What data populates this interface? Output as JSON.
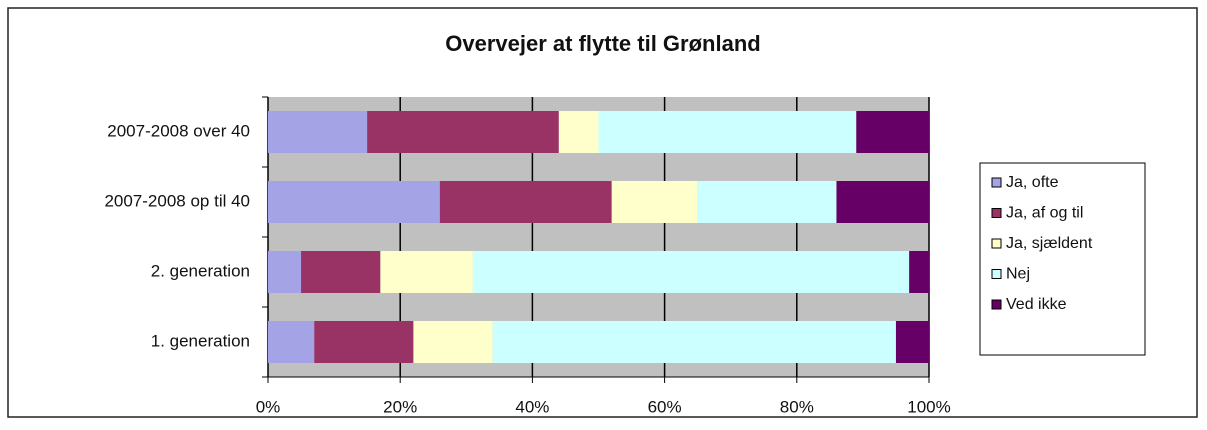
{
  "chart_data": {
    "type": "stacked_barh",
    "title": "Overvejer at flytte til Grønland",
    "categories": [
      "2007-2008 over 40",
      "2007-2008 op til 40",
      "2. generation",
      "1. generation"
    ],
    "series": [
      {
        "name": "Ja, ofte",
        "color": "#a3a3e6",
        "values": [
          15,
          26,
          5,
          7
        ]
      },
      {
        "name": "Ja, af og til",
        "color": "#993366",
        "values": [
          29,
          26,
          12,
          15
        ]
      },
      {
        "name": "Ja, sjældent",
        "color": "#ffffcc",
        "values": [
          6,
          13,
          14,
          12
        ]
      },
      {
        "name": "Nej",
        "color": "#ccffff",
        "values": [
          39,
          21,
          66,
          61
        ]
      },
      {
        "name": "Ved ikke",
        "color": "#660066",
        "values": [
          11,
          14,
          3,
          5
        ]
      }
    ],
    "xlim": [
      0,
      100
    ],
    "xticks": [
      {
        "value": 0,
        "label": "0%"
      },
      {
        "value": 20,
        "label": "20%"
      },
      {
        "value": 40,
        "label": "40%"
      },
      {
        "value": 60,
        "label": "60%"
      },
      {
        "value": 80,
        "label": "80%"
      },
      {
        "value": 100,
        "label": "100%"
      }
    ],
    "grid": true,
    "plot_background": "#c0c0c0",
    "legend": "right"
  }
}
